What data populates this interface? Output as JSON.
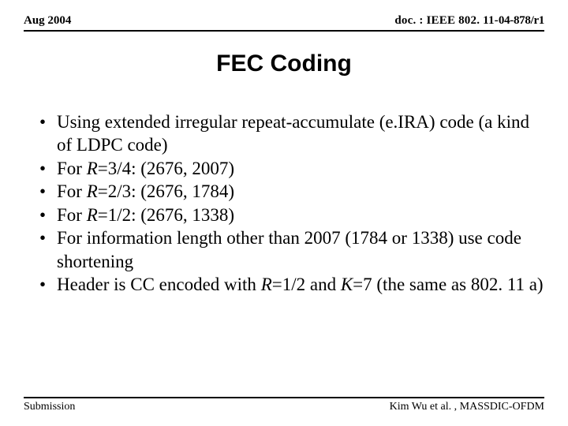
{
  "header": {
    "date": "Aug 2004",
    "docPrefix": "doc. : IEEE 802. 11-",
    "docSuffix": "04-878/r1"
  },
  "title": "FEC Coding",
  "bullets": [
    {
      "html": "Using extended irregular repeat-accumulate (e.IRA) code (a kind of LDPC code)"
    },
    {
      "html": "For <span class=\"italic\">R</span>=3/4: (2676, 2007)"
    },
    {
      "html": "For <span class=\"italic\">R</span>=2/3: (2676, 1784)"
    },
    {
      "html": "For <span class=\"italic\">R</span>=1/2: (2676, 1338)"
    },
    {
      "html": "For information length other than 2007 (1784 or 1338) use code shortening"
    },
    {
      "html": "Header is CC encoded with <span class=\"italic\">R</span>=1/2 and <span class=\"italic\">K</span>=7 (the same as 802. 11 a)"
    }
  ],
  "footer": {
    "left": "Submission",
    "right": "Kim Wu et al. , MASSDIC-OFDM"
  },
  "colors": {
    "background": "#ffffff",
    "text": "#000000",
    "rule": "#000000"
  },
  "fonts": {
    "body": "Times New Roman",
    "title": "Arial"
  }
}
